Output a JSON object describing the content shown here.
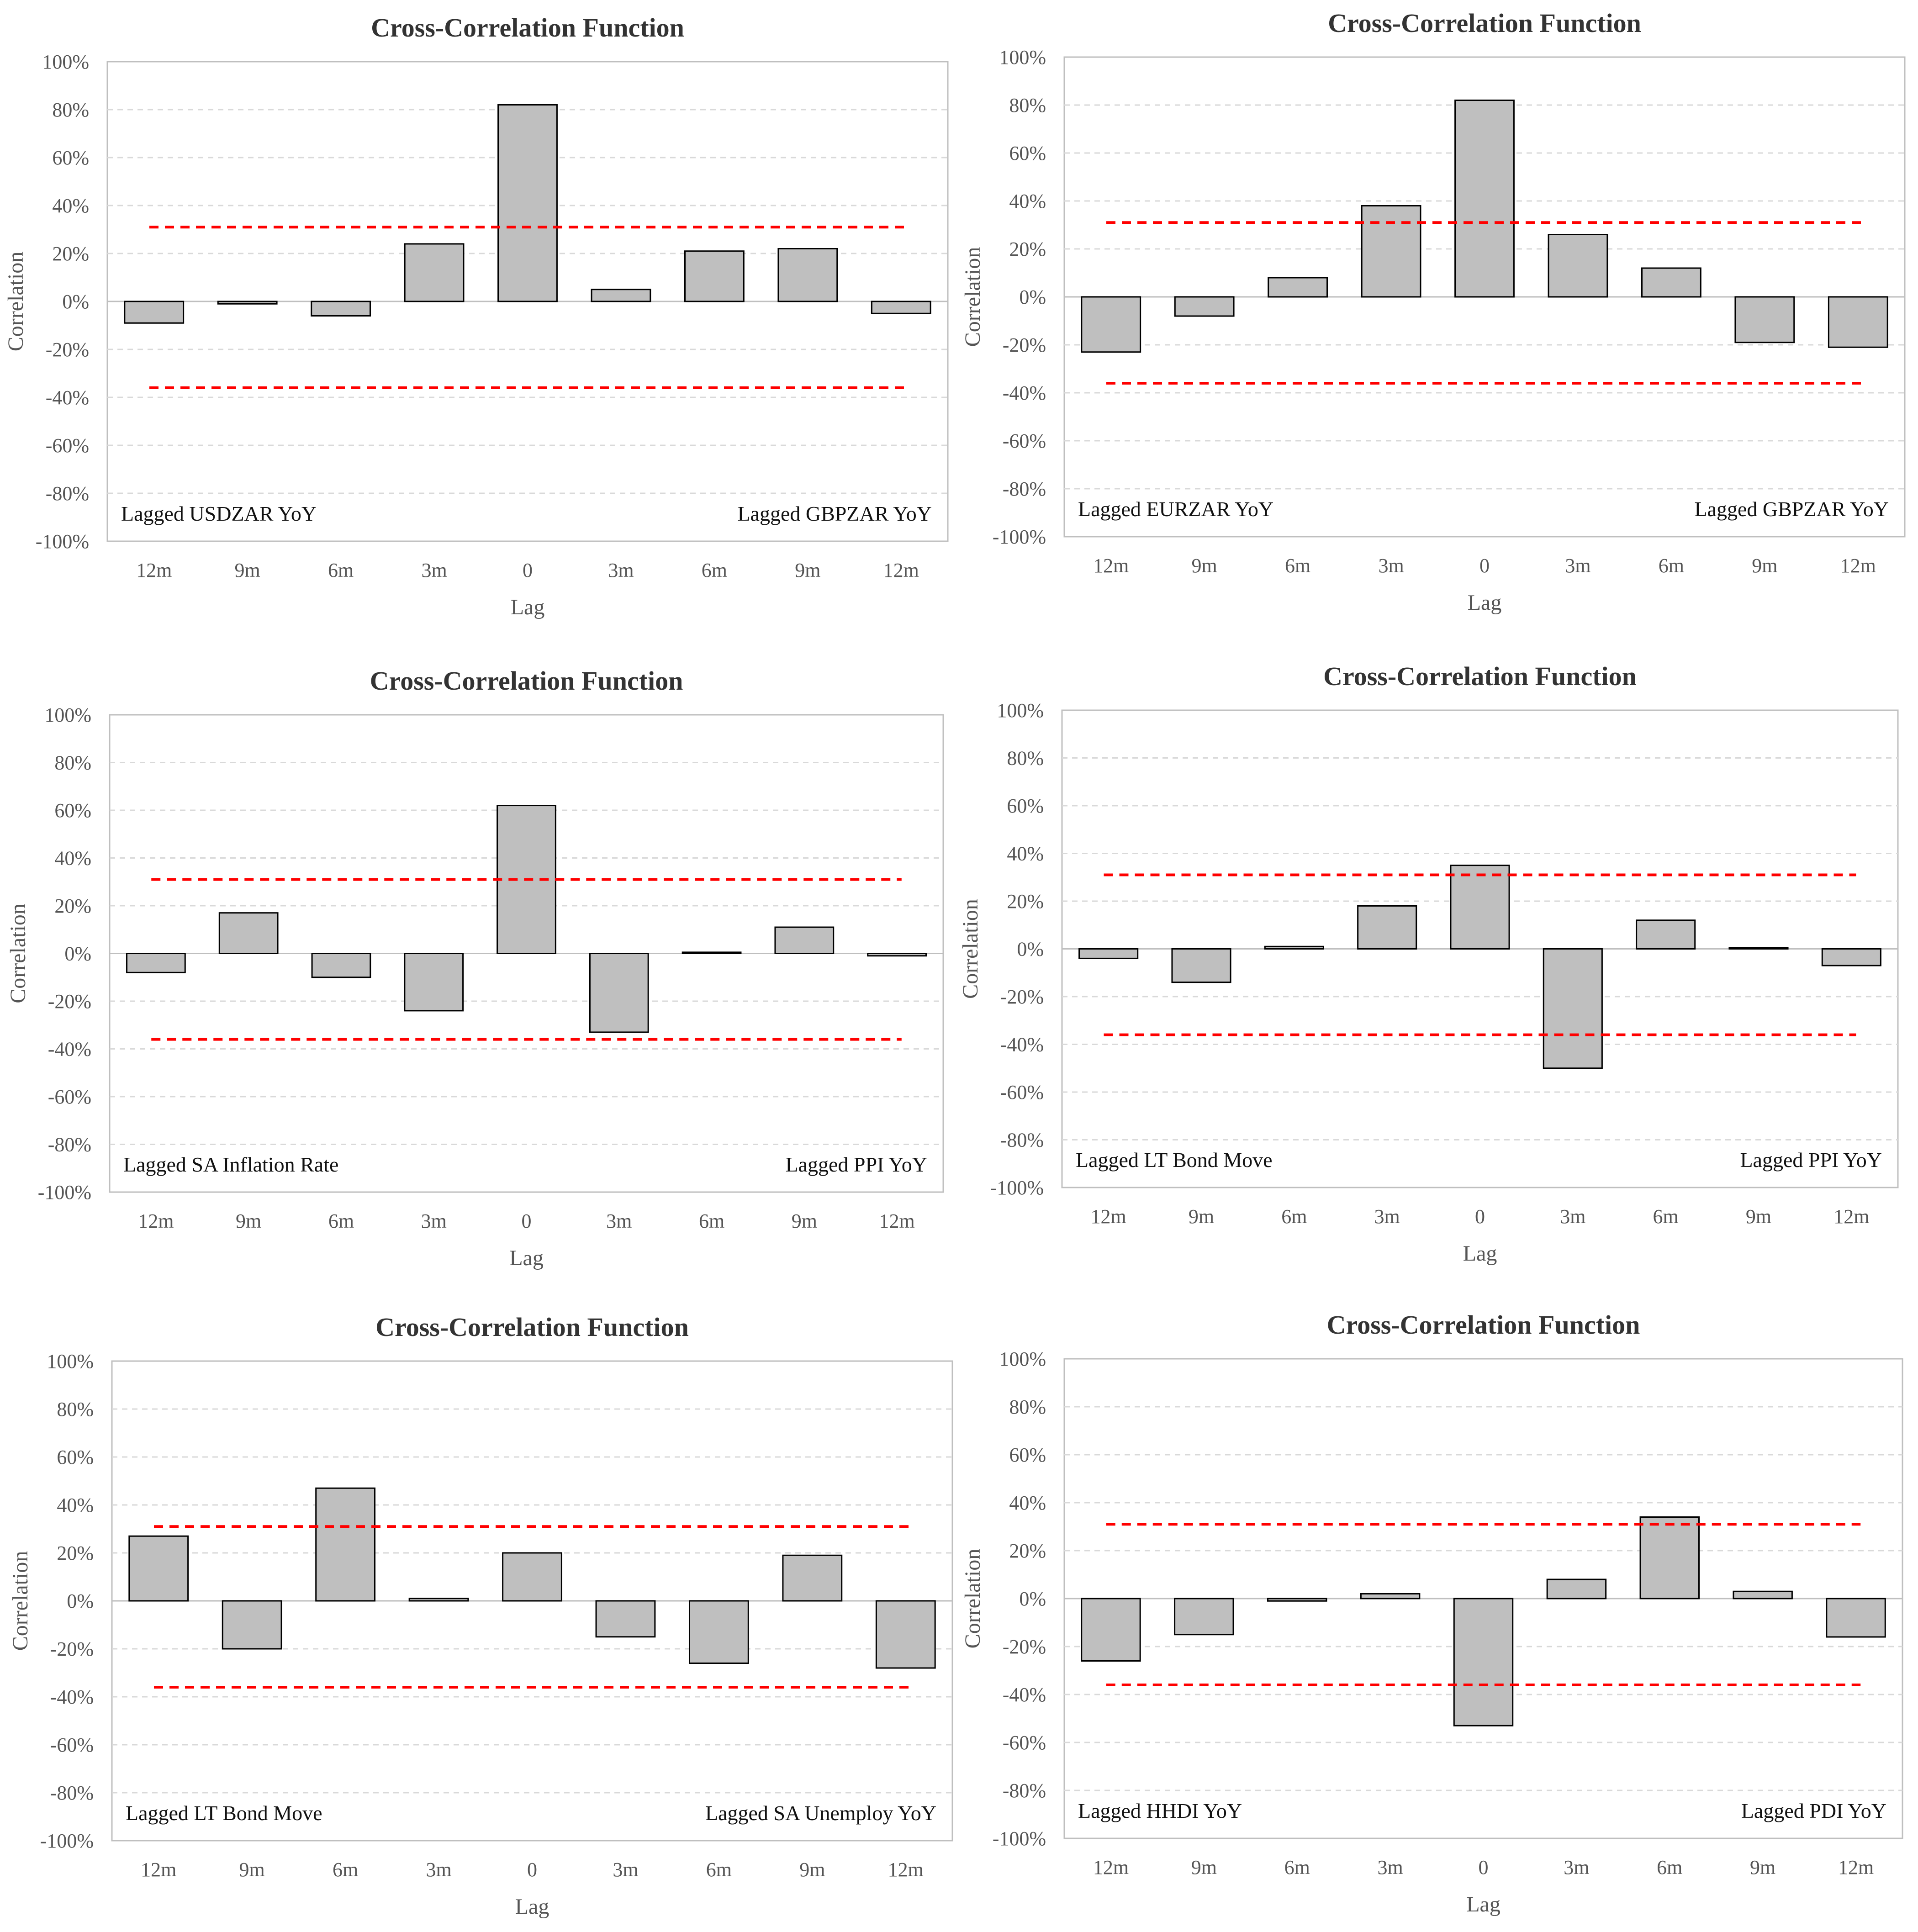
{
  "chart_data": [
    {
      "type": "bar",
      "title": "Cross-Correlation Function",
      "xlabel": "Lag",
      "ylabel": "Correlation",
      "categories": [
        "12m",
        "9m",
        "6m",
        "3m",
        "0",
        "3m",
        "6m",
        "9m",
        "12m"
      ],
      "values": [
        -9,
        -1,
        -6,
        24,
        82,
        5,
        21,
        22,
        -5
      ],
      "upper_bound": 31,
      "lower_bound": -36,
      "ylim": [
        -100,
        100
      ],
      "yticks": [
        "100%",
        "80%",
        "60%",
        "40%",
        "20%",
        "0%",
        "-20%",
        "-40%",
        "-60%",
        "-80%",
        "-100%"
      ],
      "left_label": "Lagged USDZAR YoY",
      "right_label": "Lagged GBPZAR YoY",
      "grid": true
    },
    {
      "type": "bar",
      "title": "Cross-Correlation Function",
      "xlabel": "Lag",
      "ylabel": "Correlation",
      "categories": [
        "12m",
        "9m",
        "6m",
        "3m",
        "0",
        "3m",
        "6m",
        "9m",
        "12m"
      ],
      "values": [
        -23,
        -8,
        8,
        38,
        82,
        26,
        12,
        -19,
        -21
      ],
      "upper_bound": 31,
      "lower_bound": -36,
      "ylim": [
        -100,
        100
      ],
      "yticks": [
        "100%",
        "80%",
        "60%",
        "40%",
        "20%",
        "0%",
        "-20%",
        "-40%",
        "-60%",
        "-80%",
        "-100%"
      ],
      "left_label": "Lagged EURZAR YoY",
      "right_label": "Lagged GBPZAR YoY",
      "grid": true
    },
    {
      "type": "bar",
      "title": "Cross-Correlation Function",
      "xlabel": "Lag",
      "ylabel": "Correlation",
      "categories": [
        "12m",
        "9m",
        "6m",
        "3m",
        "0",
        "3m",
        "6m",
        "9m",
        "12m"
      ],
      "values": [
        -8,
        17,
        -10,
        -24,
        62,
        -33,
        0.5,
        11,
        -1
      ],
      "upper_bound": 31,
      "lower_bound": -36,
      "ylim": [
        -100,
        100
      ],
      "yticks": [
        "100%",
        "80%",
        "60%",
        "40%",
        "20%",
        "0%",
        "-20%",
        "-40%",
        "-60%",
        "-80%",
        "-100%"
      ],
      "left_label": "Lagged SA Inflation Rate",
      "right_label": "Lagged PPI YoY",
      "grid": true
    },
    {
      "type": "bar",
      "title": "Cross-Correlation Function",
      "xlabel": "Lag",
      "ylabel": "Correlation",
      "categories": [
        "12m",
        "9m",
        "6m",
        "3m",
        "0",
        "3m",
        "6m",
        "9m",
        "12m"
      ],
      "values": [
        -4,
        -14,
        1,
        18,
        35,
        -50,
        12,
        0.5,
        -7
      ],
      "upper_bound": 31,
      "lower_bound": -36,
      "ylim": [
        -100,
        100
      ],
      "yticks": [
        "100%",
        "80%",
        "60%",
        "40%",
        "20%",
        "0%",
        "-20%",
        "-40%",
        "-60%",
        "-80%",
        "-100%"
      ],
      "left_label": "Lagged LT Bond Move",
      "right_label": "Lagged PPI YoY",
      "grid": true
    },
    {
      "type": "bar",
      "title": "Cross-Correlation Function",
      "xlabel": "Lag",
      "ylabel": "Correlation",
      "categories": [
        "12m",
        "9m",
        "6m",
        "3m",
        "0",
        "3m",
        "6m",
        "9m",
        "12m"
      ],
      "values": [
        27,
        -20,
        47,
        1,
        20,
        -15,
        -26,
        19,
        -28
      ],
      "upper_bound": 31,
      "lower_bound": -36,
      "ylim": [
        -100,
        100
      ],
      "yticks": [
        "100%",
        "80%",
        "60%",
        "40%",
        "20%",
        "0%",
        "-20%",
        "-40%",
        "-60%",
        "-80%",
        "-100%"
      ],
      "left_label": "Lagged LT Bond Move",
      "right_label": "Lagged SA Unemploy YoY",
      "grid": true
    },
    {
      "type": "bar",
      "title": "Cross-Correlation Function",
      "xlabel": "Lag",
      "ylabel": "Correlation",
      "categories": [
        "12m",
        "9m",
        "6m",
        "3m",
        "0",
        "3m",
        "6m",
        "9m",
        "12m"
      ],
      "values": [
        -26,
        -15,
        -1,
        2,
        -53,
        8,
        34,
        3,
        -16
      ],
      "upper_bound": 31,
      "lower_bound": -36,
      "ylim": [
        -100,
        100
      ],
      "yticks": [
        "100%",
        "80%",
        "60%",
        "40%",
        "20%",
        "0%",
        "-20%",
        "-40%",
        "-60%",
        "-80%",
        "-100%"
      ],
      "left_label": "Lagged HHDI YoY",
      "right_label": "Lagged PDI YoY",
      "grid": true
    }
  ]
}
